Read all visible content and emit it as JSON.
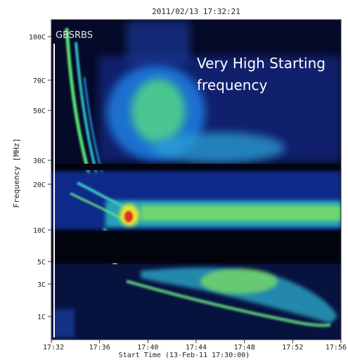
{
  "chart_data": {
    "type": "heatmap",
    "title": "2011/02/13 17:32:21",
    "xlabel": "Start Time (13-Feb-11 17:30:00)",
    "ylabel": "Frequency [MHz]",
    "instrument": "GBSRBS",
    "annotation": [
      "Very High Starting",
      "frequency"
    ],
    "x_ticks": [
      "17:32",
      "17:36",
      "17:40",
      "17:44",
      "17:48",
      "17:52",
      "17:56"
    ],
    "x_range": [
      "17:32",
      "17:56"
    ],
    "y_ticks": [
      {
        "label": "100C",
        "value": 100
      },
      {
        "label": "70C",
        "value": 70
      },
      {
        "label": "50C",
        "value": 50
      },
      {
        "label": "30C",
        "value": 30
      },
      {
        "label": "20C",
        "value": 20
      },
      {
        "label": "10C",
        "value": 10
      },
      {
        "label": "5C",
        "value": 5
      },
      {
        "label": "3C",
        "value": 3
      },
      {
        "label": "1C",
        "value": 1
      }
    ],
    "y_range": [
      0,
      110
    ],
    "grid": false,
    "colormap": [
      "#000020",
      "#0a1e8c",
      "#1c5fd0",
      "#2fb4d6",
      "#69de74",
      "#e8e430",
      "#e03020"
    ],
    "background_color": "#050a28"
  }
}
